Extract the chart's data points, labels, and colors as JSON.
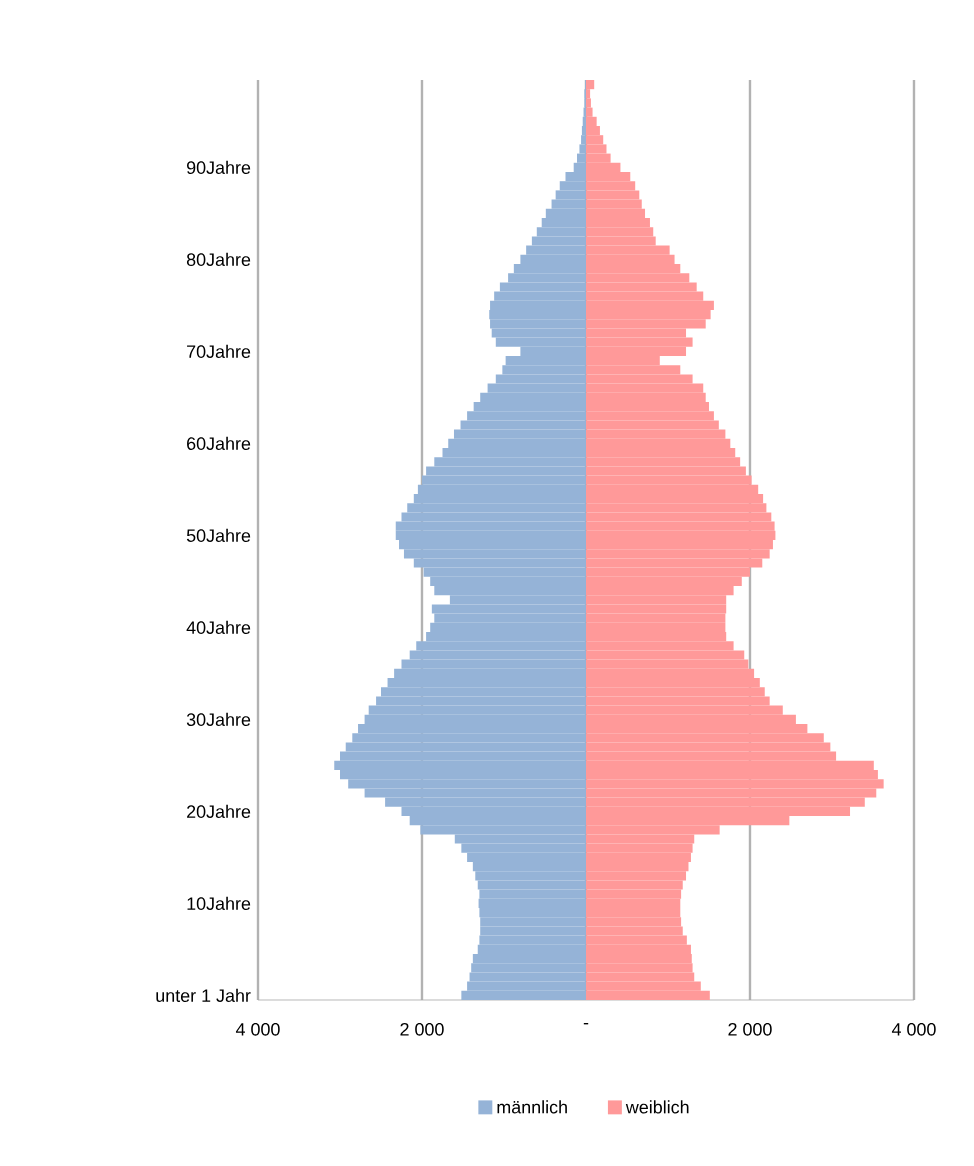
{
  "chart_data": {
    "type": "bar",
    "orientation": "horizontal",
    "categories": [
      null,
      null,
      null,
      null,
      null,
      null,
      null,
      null,
      null,
      "90Jahre",
      null,
      null,
      null,
      null,
      null,
      null,
      null,
      null,
      null,
      "80Jahre",
      null,
      null,
      null,
      null,
      null,
      null,
      null,
      null,
      null,
      "70Jahre",
      null,
      null,
      null,
      null,
      null,
      null,
      null,
      null,
      null,
      "60Jahre",
      null,
      null,
      null,
      null,
      null,
      null,
      null,
      null,
      null,
      "50Jahre",
      null,
      null,
      null,
      null,
      null,
      null,
      null,
      null,
      null,
      "40Jahre",
      null,
      null,
      null,
      null,
      null,
      null,
      null,
      null,
      null,
      "30Jahre",
      null,
      null,
      null,
      null,
      null,
      null,
      null,
      null,
      null,
      "20Jahre",
      null,
      null,
      null,
      null,
      null,
      null,
      null,
      null,
      null,
      "10Jahre",
      null,
      null,
      null,
      null,
      null,
      null,
      null,
      null,
      null,
      "unter 1 Jahr"
    ],
    "series": [
      {
        "name": "männlich",
        "color": "#95b3d7",
        "values": [
          -10,
          -20,
          -20,
          -30,
          -40,
          -50,
          -60,
          -80,
          -110,
          -150,
          -250,
          -320,
          -370,
          -420,
          -490,
          -540,
          -600,
          -660,
          -730,
          -800,
          -880,
          -950,
          -1050,
          -1120,
          -1170,
          -1180,
          -1170,
          -1150,
          -1100,
          -800,
          -980,
          -1020,
          -1100,
          -1200,
          -1290,
          -1370,
          -1450,
          -1530,
          -1610,
          -1680,
          -1750,
          -1850,
          -1950,
          -2000,
          -2050,
          -2100,
          -2180,
          -2250,
          -2320,
          -2320,
          -2280,
          -2220,
          -2100,
          -1980,
          -1900,
          -1850,
          -1660,
          -1880,
          -1850,
          -1900,
          -1950,
          -2070,
          -2150,
          -2250,
          -2340,
          -2420,
          -2500,
          -2560,
          -2650,
          -2700,
          -2780,
          -2850,
          -2930,
          -3000,
          -3070,
          -3000,
          -2900,
          -2700,
          -2450,
          -2250,
          -2150,
          -2020,
          -1600,
          -1520,
          -1450,
          -1380,
          -1350,
          -1320,
          -1300,
          -1310,
          -1300,
          -1290,
          -1290,
          -1300,
          -1320,
          -1380,
          -1400,
          -1420,
          -1450,
          -1520
        ]
      },
      {
        "name": "weiblich",
        "color": "#ff9999",
        "values": [
          100,
          50,
          60,
          80,
          130,
          170,
          210,
          250,
          300,
          420,
          540,
          600,
          650,
          680,
          720,
          780,
          820,
          850,
          1020,
          1080,
          1150,
          1260,
          1350,
          1430,
          1560,
          1520,
          1460,
          1220,
          1300,
          1220,
          900,
          1150,
          1300,
          1430,
          1460,
          1500,
          1560,
          1620,
          1700,
          1760,
          1820,
          1880,
          1950,
          2020,
          2100,
          2160,
          2200,
          2260,
          2300,
          2310,
          2280,
          2240,
          2150,
          2000,
          1900,
          1800,
          1710,
          1710,
          1700,
          1700,
          1710,
          1800,
          1930,
          1980,
          2050,
          2120,
          2180,
          2240,
          2400,
          2560,
          2700,
          2900,
          2980,
          3050,
          3510,
          3560,
          3630,
          3540,
          3400,
          3220,
          2480,
          1630,
          1320,
          1300,
          1280,
          1250,
          1220,
          1180,
          1160,
          1150,
          1150,
          1160,
          1180,
          1230,
          1280,
          1290,
          1300,
          1320,
          1400,
          1510
        ]
      }
    ],
    "xlim": [
      -4000,
      4000
    ],
    "xticks": [
      {
        "value": -4000,
        "label": "4 000"
      },
      {
        "value": -2000,
        "label": "2 000"
      },
      {
        "value": 0,
        "label": "-"
      },
      {
        "value": 2000,
        "label": "2 000"
      },
      {
        "value": 4000,
        "label": "4 000"
      }
    ],
    "grid": "x",
    "legend": "bottom",
    "stacked": true
  }
}
